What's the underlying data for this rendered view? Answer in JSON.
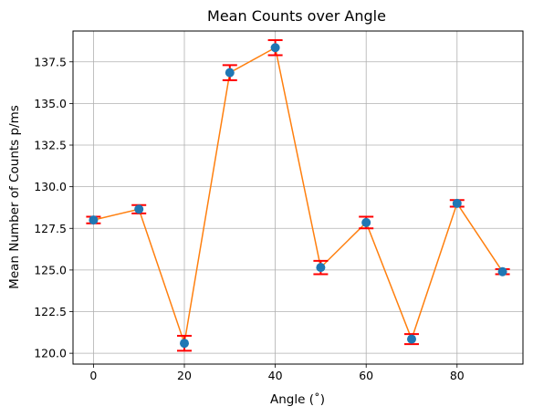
{
  "chart_data": {
    "type": "line",
    "title": "Mean Counts over Angle",
    "xlabel": "Angle (˚)",
    "ylabel": "Mean Number of Counts p/ms",
    "grid": true,
    "xlim": [
      -4.5,
      94.5
    ],
    "ylim": [
      119.35,
      139.35
    ],
    "xticks": [
      0,
      20,
      40,
      60,
      80
    ],
    "xtick_labels": [
      "0",
      "20",
      "40",
      "60",
      "80"
    ],
    "yticks": [
      120.0,
      122.5,
      125.0,
      127.5,
      130.0,
      132.5,
      135.0,
      137.5
    ],
    "ytick_labels": [
      "120.0",
      "122.5",
      "125.0",
      "127.5",
      "130.0",
      "132.5",
      "135.0",
      "137.5"
    ],
    "series": [
      {
        "x": [
          0,
          10,
          20,
          30,
          40,
          50,
          60,
          70,
          80,
          90
        ],
        "y": [
          128.0,
          128.65,
          120.6,
          136.85,
          138.35,
          125.15,
          127.85,
          120.85,
          129.0,
          124.9
        ],
        "yerr": [
          0.2,
          0.25,
          0.45,
          0.45,
          0.45,
          0.4,
          0.35,
          0.3,
          0.2,
          0.15
        ],
        "line_color": "#ff7f0e",
        "marker_color": "#1f77b4",
        "errorbar_color": "#ff0000"
      }
    ]
  }
}
